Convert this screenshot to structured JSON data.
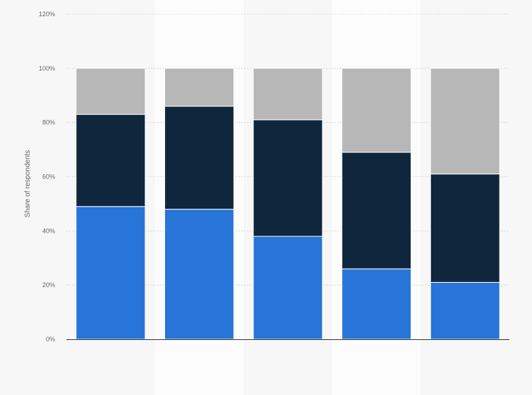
{
  "chart_data": {
    "type": "bar",
    "stacked": true,
    "ylabel": "Share of respondents",
    "ylim": [
      0,
      120
    ],
    "yticks": [
      "0%",
      "20%",
      "40%",
      "60%",
      "80%",
      "100%",
      "120%"
    ],
    "grid": true,
    "categories": [
      "",
      "",
      "",
      "",
      ""
    ],
    "series": [
      {
        "color": "#2775d8",
        "values": [
          49,
          48,
          38,
          26,
          21
        ]
      },
      {
        "color": "#10263d",
        "values": [
          34,
          38,
          43,
          43,
          40
        ]
      },
      {
        "color": "#b7b7b7",
        "values": [
          17,
          14,
          19,
          31,
          39
        ]
      }
    ]
  }
}
